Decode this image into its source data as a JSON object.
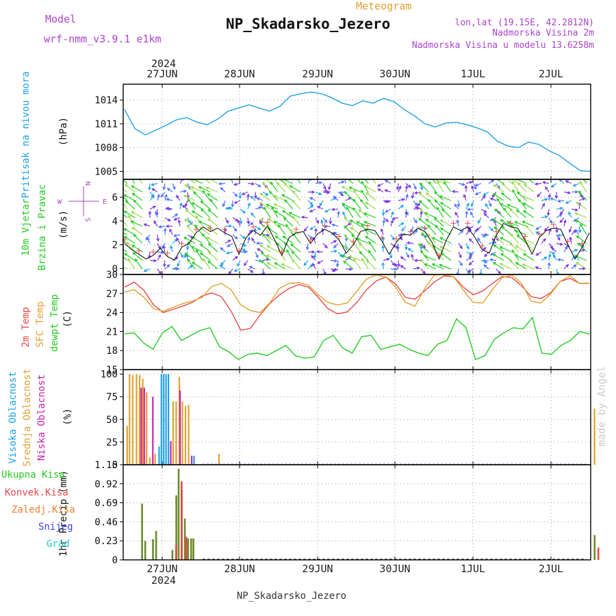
{
  "header": {
    "model_label": "Model",
    "model_value": "wrf-nmm_v3.9.1  e1km",
    "meteogram_label": "Meteogram",
    "station": "NP_Skadarsko_Jezero",
    "coords": "lon,lat (19.15E, 42.2812N)",
    "elevation": "Nadmorska Visina 2m",
    "model_elevation": "Nadmorska Visina u modelu 13.6258m",
    "footer_station": "NP_Skadarsko_Jezero",
    "credit": "made by Angel",
    "year_top": "2024",
    "year_bottom": "2024"
  },
  "colors": {
    "pressure": "#1ea0e6",
    "wind_label": "#22cc22",
    "wind_compass": "#aa44cc",
    "temp_2m": "#e84848",
    "temp_sfc": "#e0a030",
    "dewpt": "#22cc22",
    "cloud_high": "#1ea0e6",
    "cloud_mid": "#e0a030",
    "cloud_low": "#cc22aa",
    "rain_total": "#22cc22",
    "rain_conv": "#e84848",
    "rain_frz": "#f08030",
    "snow": "#4040e0",
    "graupel": "#22cccc",
    "model_text": "#aa44cc",
    "meteogram_text": "#e0a030",
    "info_text": "#aa44cc",
    "credit_text": "#cccccc"
  },
  "chart_data": [
    {
      "type": "line",
      "id": "pressure",
      "ylabel_name": "Pritisak na nivou mora",
      "ylabel_unit": "(hPa)",
      "ylim": [
        1004,
        1016
      ],
      "yticks": [
        1005,
        1008,
        1011,
        1014
      ],
      "x_days": [
        0.0,
        0.1,
        0.2,
        0.3,
        0.4,
        0.5,
        0.6,
        0.7,
        0.8,
        0.9,
        1.0,
        1.1,
        1.2,
        1.3,
        1.4,
        1.5,
        1.6,
        1.7,
        1.8,
        1.9,
        2.0,
        2.1,
        2.2,
        2.3,
        2.4,
        2.5,
        2.6,
        2.7,
        2.8,
        2.9,
        3.0,
        3.1,
        3.2,
        3.3,
        3.4,
        3.5,
        3.6,
        3.7,
        3.8,
        3.9,
        4.0,
        4.1,
        4.2,
        4.3,
        4.4,
        4.5,
        4.6,
        4.7,
        4.8,
        4.9,
        5.0,
        5.1,
        5.2,
        5.3,
        5.4,
        5.5,
        5.6,
        5.7,
        5.8,
        5.9,
        6.0,
        6.1
      ],
      "series": [
        {
          "values": [
            1012.8,
            1010.4,
            1009.6,
            1010.2,
            1010.8,
            1011.5,
            1011.8,
            1011.2,
            1010.9,
            1011.6,
            1012.6,
            1013.0,
            1013.4,
            1013.0,
            1012.6,
            1013.2,
            1014.5,
            1014.8,
            1015.0,
            1014.8,
            1014.3,
            1013.6,
            1013.3,
            1013.9,
            1013.6,
            1014.2,
            1013.8,
            1012.8,
            1012.0,
            1011.0,
            1010.6,
            1011.1,
            1011.2,
            1010.9,
            1010.5,
            1010.0,
            1008.8,
            1008.2,
            1008.0,
            1008.7,
            1008.4,
            1007.6,
            1007.0,
            1006.0,
            1005.1,
            1005.0
          ]
        }
      ]
    },
    {
      "type": "line",
      "id": "wind",
      "ylabel_name1": "10m  Vjetar",
      "ylabel_name2": "Brzina i Pravac",
      "ylabel_unit": "(m/s)",
      "ylim": [
        -0.5,
        7.5
      ],
      "yticks": [
        0,
        2,
        4,
        6
      ],
      "compass_n": "N",
      "compass_s": "S",
      "compass_e": "E",
      "compass_w": "W",
      "series": [
        {
          "values": [
            2.1,
            1.6,
            1.2,
            0.8,
            1.1,
            1.7,
            1.0,
            0.7,
            1.8,
            2.1,
            3.0,
            3.5,
            3.1,
            3.4,
            3.0,
            2.7,
            1.2,
            2.6,
            3.2,
            2.8,
            3.6,
            2.4,
            1.1,
            2.6,
            3.0,
            3.1,
            2.1,
            2.9,
            3.3,
            3.0,
            2.4,
            1.3,
            2.0,
            3.1,
            3.3,
            3.2,
            2.3,
            1.2,
            2.2,
            2.9,
            2.8,
            3.4,
            3.1,
            2.2,
            0.8,
            2.4,
            3.5,
            3.2,
            3.5,
            2.6,
            1.6,
            1.3,
            2.8,
            3.8,
            3.5,
            3.4,
            2.4,
            1.2,
            2.6,
            3.2,
            3.4,
            3.3,
            2.0,
            0.8,
            1.8,
            3.0
          ]
        }
      ]
    },
    {
      "type": "line",
      "id": "temperature",
      "ylabel_name1": "2m Temp",
      "ylabel_name2": "SFC Temp",
      "ylabel_name3": "dewpt Temp",
      "ylabel_unit": "(C)",
      "ylim": [
        15,
        30
      ],
      "yticks": [
        15,
        18,
        21,
        24,
        27,
        30
      ],
      "x_days": [
        0.0,
        0.1,
        0.2,
        0.3,
        0.4,
        0.5,
        0.6,
        0.7,
        0.8,
        0.9,
        1.0,
        1.1,
        1.2,
        1.3,
        1.4,
        1.5,
        1.6,
        1.7,
        1.8,
        1.9,
        2.0,
        2.1,
        2.2,
        2.3,
        2.4,
        2.5,
        2.6,
        2.7,
        2.8,
        2.9,
        3.0,
        3.1,
        3.2,
        3.3,
        3.4,
        3.5,
        3.6,
        3.7,
        3.8,
        3.9,
        4.0,
        4.1,
        4.2,
        4.3,
        4.4,
        4.5,
        4.6,
        4.7,
        4.8,
        4.9,
        5.0,
        5.1,
        5.2,
        5.3,
        5.4,
        5.5,
        5.6,
        5.7,
        5.8,
        5.9,
        6.0,
        6.1
      ],
      "series": [
        {
          "values": [
            28.0,
            28.8,
            27.5,
            25.2,
            24.0,
            24.5,
            25.0,
            25.6,
            26.6,
            27.1,
            26.5,
            24.2,
            21.2,
            21.5,
            23.6,
            25.4,
            26.8,
            27.8,
            28.4,
            28.0,
            26.4,
            24.6,
            23.8,
            24.1,
            25.6,
            27.6,
            29.0,
            29.6,
            28.5,
            26.4,
            26.1,
            27.4,
            28.8,
            29.8,
            29.6,
            28.0,
            26.8,
            27.4,
            28.6,
            29.7,
            29.5,
            28.2,
            26.5,
            26.2,
            27.1,
            28.9,
            29.4,
            28.6,
            28.6
          ]
        },
        {
          "values": [
            27.2,
            27.6,
            26.4,
            24.6,
            24.2,
            24.8,
            25.4,
            25.8,
            26.4,
            28.1,
            28.6,
            27.6,
            25.2,
            24.3,
            24.0,
            25.5,
            27.8,
            28.6,
            28.7,
            28.3,
            26.8,
            25.6,
            25.2,
            25.5,
            27.4,
            29.3,
            29.9,
            29.6,
            28.0,
            25.6,
            25.0,
            27.8,
            29.9,
            30.0,
            29.6,
            27.5,
            25.6,
            25.5,
            27.6,
            29.5,
            29.9,
            28.6,
            25.8,
            25.5,
            26.9,
            28.9,
            29.8,
            28.6,
            28.6
          ]
        },
        {
          "values": [
            20.6,
            20.8,
            19.2,
            18.2,
            20.8,
            21.8,
            19.6,
            20.4,
            21.2,
            21.6,
            18.6,
            17.8,
            16.6,
            17.4,
            17.6,
            17.2,
            18.0,
            18.8,
            17.2,
            16.8,
            17.0,
            19.6,
            20.4,
            18.4,
            17.6,
            20.2,
            20.4,
            18.2,
            18.6,
            19.0,
            18.2,
            17.6,
            17.2,
            19.0,
            19.6,
            23.0,
            21.6,
            16.6,
            17.2,
            19.8,
            20.8,
            21.6,
            21.4,
            23.2,
            17.6,
            17.4,
            18.8,
            19.6,
            21.0,
            20.6
          ]
        }
      ]
    },
    {
      "type": "bar",
      "id": "clouds",
      "ylabel_name1": "Visoka Oblacnost",
      "ylabel_name2": "Srednja Oblacnost",
      "ylabel_name3": "Niska Oblacnost",
      "ylabel_unit": "(%)",
      "ylim": [
        0,
        105
      ],
      "yticks": [
        0,
        25,
        50,
        75,
        100
      ],
      "series": [
        {
          "x_days": [
            0.45,
            0.48,
            0.51,
            0.54,
            0.57,
            0.9,
            1.12
          ],
          "values": [
            20,
            100,
            100,
            100,
            100,
            10,
            0
          ]
        },
        {
          "x_days": [
            0.04,
            0.07,
            0.11,
            0.16,
            0.2,
            0.24,
            0.29,
            0.33,
            0.4,
            0.63,
            0.67,
            0.71,
            0.75,
            0.79,
            0.83,
            1.22,
            6.05
          ],
          "values": [
            43,
            100,
            99,
            100,
            99,
            95,
            80,
            8,
            12,
            70,
            70,
            97,
            70,
            65,
            66,
            12,
            62
          ]
        },
        {
          "x_days": [
            0.22,
            0.26,
            0.37,
            0.6,
            0.72,
            0.87
          ],
          "values": [
            85,
            85,
            75,
            26,
            82,
            10
          ]
        }
      ]
    },
    {
      "type": "bar",
      "id": "precip",
      "ylabel_name": "1hr Precip (mm)",
      "ylim": [
        0,
        1.15
      ],
      "yticks": [
        0,
        0.23,
        0.46,
        0.69,
        0.92,
        1.15
      ],
      "legend": [
        "Ukupna Kisa",
        "Konvek.Kisa",
        "Zaledj.Kisa",
        "Snijeg",
        "Grad"
      ],
      "series": [
        {
          "x_days": [
            0.23,
            0.27,
            0.37,
            0.41,
            0.62,
            0.67,
            0.7,
            0.74,
            0.78,
            0.82,
            0.86,
            0.89,
            6.05
          ],
          "values": [
            0.68,
            0.23,
            0.25,
            0.35,
            0.12,
            0.78,
            1.1,
            0.84,
            0.5,
            0.26,
            0.26,
            0.26,
            0.3
          ]
        },
        {
          "x_days": [
            0.65,
            0.72,
            0.78,
            6.08
          ],
          "values": [
            0.18,
            0.95,
            0.28,
            0.15
          ]
        }
      ]
    }
  ],
  "x_axis": {
    "days": [
      "27JUN",
      "28JUN",
      "29JUN",
      "30JUN",
      "1JUL",
      "2JUL"
    ]
  }
}
